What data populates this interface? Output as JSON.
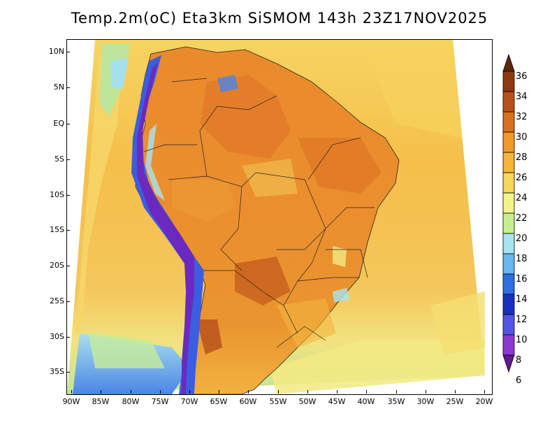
{
  "title": "Temp.2m(oC) Eta3km SiSMOM 143h 23Z17NOV2025",
  "lat_labels": [
    "10N",
    "5N",
    "EQ",
    "5S",
    "10S",
    "15S",
    "20S",
    "25S",
    "30S",
    "35S"
  ],
  "lon_labels": [
    "90W",
    "85W",
    "80W",
    "75W",
    "70W",
    "65W",
    "60W",
    "55W",
    "50W",
    "45W",
    "40W",
    "35W",
    "30W",
    "25W",
    "20W"
  ],
  "colorbar": {
    "labels": [
      "36",
      "34",
      "32",
      "30",
      "28",
      "26",
      "24",
      "22",
      "20",
      "18",
      "16",
      "14",
      "12",
      "10",
      "8",
      "6"
    ],
    "colors": [
      "#5a2a0a",
      "#8b3a12",
      "#b5521b",
      "#d9701f",
      "#ee9a2a",
      "#f5b53a",
      "#f7d75a",
      "#f4f28a",
      "#c8ee92",
      "#a8e3f0",
      "#6ab6ee",
      "#2e6ee0",
      "#1a2fc0",
      "#5256e0",
      "#8a3ad0",
      "#5e1a8e"
    ]
  },
  "colors": {
    "ocean_north": "#f7d060",
    "ocean_mid": "#f5b848",
    "ocean_south": "#f3dc70",
    "land_hot": "#e8862a",
    "land_warm": "#f0a838",
    "andes_cold": "#6a2ac0",
    "andes_cool": "#3a5ee0"
  }
}
